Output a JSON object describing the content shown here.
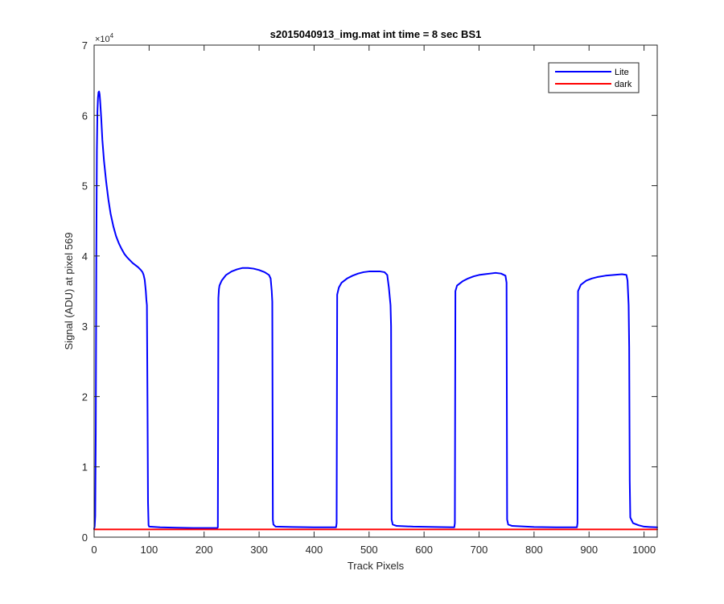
{
  "chart_data": {
    "type": "line",
    "title": "s2015040913_img.mat int time = 8 sec   BS1",
    "xlabel": "Track Pixels",
    "ylabel": "Signal (ADU) at pixel 569",
    "xlim": [
      0,
      1024
    ],
    "ylim": [
      0,
      70000
    ],
    "xticks": [
      0,
      100,
      200,
      300,
      400,
      500,
      600,
      700,
      800,
      900,
      1000
    ],
    "xtick_labels": [
      "0",
      "100",
      "200",
      "300",
      "400",
      "500",
      "600",
      "700",
      "800",
      "900",
      "1000"
    ],
    "yticks": [
      0,
      10000,
      20000,
      30000,
      40000,
      50000,
      60000,
      70000
    ],
    "ytick_labels": [
      "0",
      "1",
      "2",
      "3",
      "4",
      "5",
      "6",
      "7"
    ],
    "y_exponent": {
      "base": "×10",
      "power": "4"
    },
    "grid": false,
    "legend": {
      "position": "top-right",
      "entries": [
        "Lite",
        "dark"
      ]
    },
    "series": [
      {
        "name": "Lite",
        "color": "#0000ff",
        "points": [
          [
            0,
            1200
          ],
          [
            1,
            1500
          ],
          [
            2,
            3000
          ],
          [
            3,
            15000
          ],
          [
            4,
            40000
          ],
          [
            5,
            55000
          ],
          [
            6,
            60500
          ],
          [
            7,
            62500
          ],
          [
            8,
            63300
          ],
          [
            9,
            63400
          ],
          [
            10,
            63000
          ],
          [
            11,
            62000
          ],
          [
            13,
            59500
          ],
          [
            15,
            56500
          ],
          [
            18,
            53500
          ],
          [
            22,
            50500
          ],
          [
            26,
            48000
          ],
          [
            30,
            46000
          ],
          [
            35,
            44200
          ],
          [
            40,
            42800
          ],
          [
            45,
            41800
          ],
          [
            50,
            41000
          ],
          [
            55,
            40300
          ],
          [
            60,
            39800
          ],
          [
            65,
            39400
          ],
          [
            70,
            39000
          ],
          [
            75,
            38700
          ],
          [
            80,
            38400
          ],
          [
            85,
            38000
          ],
          [
            88,
            37700
          ],
          [
            90,
            37300
          ],
          [
            92,
            36600
          ],
          [
            94,
            35000
          ],
          [
            95,
            33800
          ],
          [
            96,
            33000
          ],
          [
            97,
            20000
          ],
          [
            98,
            5000
          ],
          [
            99,
            1700
          ],
          [
            100,
            1500
          ],
          [
            120,
            1400
          ],
          [
            150,
            1350
          ],
          [
            180,
            1300
          ],
          [
            200,
            1300
          ],
          [
            224,
            1300
          ],
          [
            225,
            1400
          ],
          [
            226,
            34000
          ],
          [
            227,
            35300
          ],
          [
            228,
            35800
          ],
          [
            232,
            36500
          ],
          [
            240,
            37300
          ],
          [
            250,
            37800
          ],
          [
            260,
            38100
          ],
          [
            270,
            38300
          ],
          [
            280,
            38300
          ],
          [
            290,
            38200
          ],
          [
            300,
            38000
          ],
          [
            310,
            37700
          ],
          [
            318,
            37300
          ],
          [
            321,
            36800
          ],
          [
            323,
            35000
          ],
          [
            324,
            33500
          ],
          [
            325,
            2500
          ],
          [
            326,
            1800
          ],
          [
            330,
            1500
          ],
          [
            360,
            1450
          ],
          [
            400,
            1400
          ],
          [
            440,
            1400
          ],
          [
            441,
            2000
          ],
          [
            442,
            34500
          ],
          [
            445,
            35500
          ],
          [
            450,
            36200
          ],
          [
            460,
            36800
          ],
          [
            470,
            37200
          ],
          [
            480,
            37500
          ],
          [
            490,
            37700
          ],
          [
            500,
            37800
          ],
          [
            510,
            37800
          ],
          [
            520,
            37800
          ],
          [
            528,
            37700
          ],
          [
            533,
            37300
          ],
          [
            536,
            35500
          ],
          [
            539,
            33000
          ],
          [
            540,
            30000
          ],
          [
            541,
            2500
          ],
          [
            543,
            1800
          ],
          [
            550,
            1600
          ],
          [
            580,
            1500
          ],
          [
            620,
            1450
          ],
          [
            655,
            1400
          ],
          [
            656,
            2000
          ],
          [
            657,
            35000
          ],
          [
            660,
            35800
          ],
          [
            670,
            36400
          ],
          [
            680,
            36800
          ],
          [
            690,
            37100
          ],
          [
            700,
            37300
          ],
          [
            710,
            37400
          ],
          [
            720,
            37500
          ],
          [
            730,
            37600
          ],
          [
            740,
            37500
          ],
          [
            748,
            37200
          ],
          [
            750,
            36200
          ],
          [
            751,
            2500
          ],
          [
            753,
            1800
          ],
          [
            760,
            1600
          ],
          [
            800,
            1450
          ],
          [
            840,
            1400
          ],
          [
            878,
            1400
          ],
          [
            879,
            2000
          ],
          [
            880,
            35000
          ],
          [
            885,
            35900
          ],
          [
            895,
            36500
          ],
          [
            905,
            36800
          ],
          [
            915,
            37000
          ],
          [
            930,
            37200
          ],
          [
            945,
            37300
          ],
          [
            960,
            37400
          ],
          [
            968,
            37300
          ],
          [
            970,
            36500
          ],
          [
            972,
            33000
          ],
          [
            973,
            27000
          ],
          [
            974,
            8000
          ],
          [
            975,
            2800
          ],
          [
            980,
            2000
          ],
          [
            990,
            1700
          ],
          [
            1000,
            1500
          ],
          [
            1010,
            1450
          ],
          [
            1024,
            1400
          ]
        ]
      },
      {
        "name": "dark",
        "color": "#ff0000",
        "points": [
          [
            0,
            1100
          ],
          [
            1024,
            1100
          ]
        ]
      }
    ]
  }
}
